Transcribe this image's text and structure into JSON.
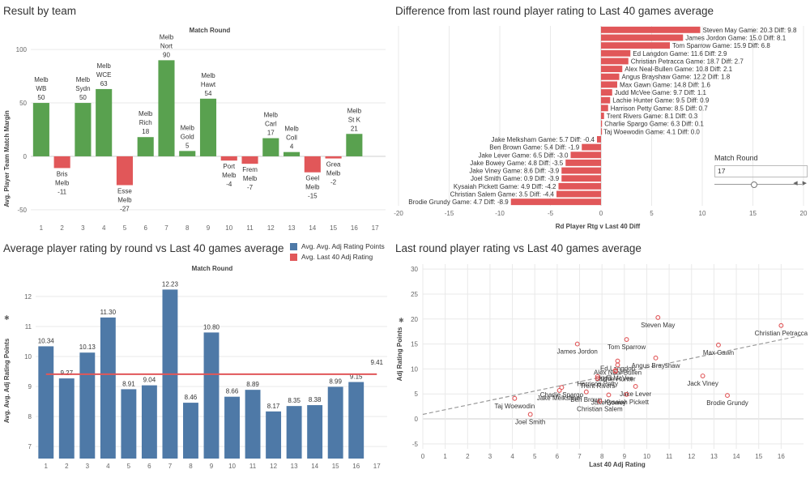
{
  "panels": {
    "p1": {
      "title": "Result by team",
      "header": "Match Round",
      "ylabel": "Avg. Player Team Match Margin",
      "yticks": [
        -50,
        0,
        50,
        100
      ],
      "rounds": [
        1,
        2,
        3,
        4,
        5,
        6,
        7,
        8,
        9,
        10,
        11,
        12,
        13,
        14,
        15,
        16,
        17
      ],
      "labels": [
        [
          "Melb",
          "WB",
          "50"
        ],
        [
          "Bris",
          "Melb",
          "-11"
        ],
        [
          "Melb",
          "Sydn",
          "50"
        ],
        [
          "Melb",
          "WCE",
          "63"
        ],
        [
          "Esse",
          "Melb",
          "-27"
        ],
        [
          "Melb",
          "Rich",
          "18"
        ],
        [
          "Melb",
          "Nort",
          "90"
        ],
        [
          "Melb",
          "Gold",
          "5"
        ],
        [
          "Melb",
          "Hawt",
          "54"
        ],
        [
          "Port",
          "Melb",
          "-4"
        ],
        [
          "Frem",
          "Melb",
          "-7"
        ],
        [
          "Melb",
          "Carl",
          "17"
        ],
        [
          "Melb",
          "Coll",
          "4"
        ],
        [
          "Geel",
          "Melb",
          "-15"
        ],
        [
          "Grea",
          "Melb",
          "-2"
        ],
        [
          "Melb",
          "St K",
          "21"
        ]
      ],
      "values": [
        50,
        -11,
        50,
        63,
        -27,
        18,
        90,
        5,
        54,
        -4,
        -7,
        17,
        4,
        -15,
        -2,
        21
      ],
      "colors": {
        "win": "#59a14f",
        "loss": "#e15759"
      }
    },
    "p2": {
      "title": "Difference from last round player rating to Last 40 games average",
      "xlabel": "Rd Player Rtg v Last 40 Diff",
      "xticks": [
        -20,
        -15,
        -10,
        -5,
        0,
        5,
        10,
        15,
        20
      ],
      "labels": [
        "Steven May Game: 20.3 Diff: 9.8",
        "James Jordon Game: 15.0 Diff: 8.1",
        "Tom Sparrow Game: 15.9 Diff: 6.8",
        "Ed Langdon Game: 11.6 Diff: 2.9",
        "Christian Petracca Game: 18.7 Diff: 2.7",
        "Alex Neal-Bullen Game: 10.8 Diff: 2.1",
        "Angus Brayshaw Game: 12.2 Diff: 1.8",
        "Max Gawn Game: 14.8 Diff: 1.6",
        "Judd McVee Game: 9.7 Diff: 1.1",
        "Lachie Hunter Game: 9.5 Diff: 0.9",
        "Harrison Petty Game: 8.5 Diff: 0.7",
        "Trent Rivers Game: 8.1 Diff: 0.3",
        "Charlie Spargo Game: 6.3 Diff: 0.1",
        "Taj Woewodin Game: 4.1 Diff: 0.0",
        "Jake Melksham Game: 5.7 Diff: -0.4",
        "Ben Brown Game: 5.4 Diff: -1.9",
        "Jake Lever Game: 6.5 Diff: -3.0",
        "Jake Bowey Game: 4.8 Diff: -3.5",
        "Jake Viney Game: 8.6 Diff: -3.9",
        "Joel Smith Game: 0.9 Diff: -3.9",
        "Kysaiah Pickett Game: 4.9 Diff: -4.2",
        "Christian Salem Game: 3.5 Diff: -4.4",
        "Brodie Grundy Game: 4.7 Diff: -8.9"
      ],
      "values": [
        9.8,
        8.1,
        6.8,
        2.9,
        2.7,
        2.1,
        1.8,
        1.6,
        1.1,
        0.9,
        0.7,
        0.3,
        0.1,
        0.0,
        -0.4,
        -1.9,
        -3.0,
        -3.5,
        -3.9,
        -3.9,
        -4.2,
        -4.4,
        -8.9
      ],
      "color": "#e15759"
    },
    "p3": {
      "title": "Average player rating by round vs Last 40 games average",
      "header": "Match Round",
      "ylabel": "Avg. Avg. Adj Rating Points",
      "yticks": [
        7,
        8,
        9,
        10,
        11,
        12
      ],
      "rounds": [
        1,
        2,
        3,
        4,
        5,
        6,
        7,
        8,
        9,
        10,
        11,
        12,
        13,
        14,
        15,
        16,
        17
      ],
      "values": [
        10.34,
        9.27,
        10.13,
        11.3,
        8.91,
        9.04,
        12.23,
        8.46,
        10.8,
        8.66,
        8.89,
        8.17,
        8.35,
        8.38,
        8.99,
        9.15
      ],
      "value_labels": [
        "10.34",
        "9.27",
        "10.13",
        "11.30",
        "8.91",
        "9.04",
        "12.23",
        "8.46",
        "10.80",
        "8.66",
        "8.89",
        "8.17",
        "8.35",
        "8.38",
        "8.99",
        "9.15"
      ],
      "line_value": 9.41,
      "line_label": "9.41",
      "colors": {
        "bar": "#4e79a7",
        "line": "#e15759"
      },
      "legend": [
        {
          "label": "Avg. Avg. Adj Rating Points",
          "color": "#4e79a7"
        },
        {
          "label": "Avg. Last 40 Adj Rating",
          "color": "#e15759"
        }
      ]
    },
    "p4": {
      "title": "Last round player rating vs Last 40 games average",
      "xlabel": "Last 40 Adj Rating",
      "ylabel": "Adj Rating Points",
      "xticks": [
        0,
        1,
        2,
        3,
        4,
        5,
        6,
        7,
        8,
        9,
        10,
        11,
        12,
        13,
        14,
        15,
        16
      ],
      "yticks": [
        -5,
        0,
        5,
        10,
        15,
        20,
        25,
        30
      ],
      "points": [
        {
          "name": "Steven May",
          "x": 10.5,
          "y": 20.3
        },
        {
          "name": "Christian Petracca",
          "x": 16.0,
          "y": 18.7
        },
        {
          "name": "James Jordon",
          "x": 6.9,
          "y": 15.0
        },
        {
          "name": "Tom Sparrow",
          "x": 9.1,
          "y": 15.9
        },
        {
          "name": "Max Gawn",
          "x": 13.2,
          "y": 14.8
        },
        {
          "name": "Angus Brayshaw",
          "x": 10.4,
          "y": 12.2
        },
        {
          "name": "Ed Langdon",
          "x": 8.7,
          "y": 11.6
        },
        {
          "name": "Alex Neal-Bullen",
          "x": 8.7,
          "y": 10.8
        },
        {
          "name": "Judd McVee",
          "x": 8.6,
          "y": 9.7
        },
        {
          "name": "Lachie Hunter",
          "x": 8.6,
          "y": 9.5
        },
        {
          "name": "Harrison Petty",
          "x": 7.8,
          "y": 8.5
        },
        {
          "name": "Trent Rivers",
          "x": 7.8,
          "y": 8.1
        },
        {
          "name": "Jack Viney",
          "x": 12.5,
          "y": 8.6
        },
        {
          "name": "Charlie Spargo",
          "x": 6.2,
          "y": 6.3
        },
        {
          "name": "Jake Melksham",
          "x": 6.1,
          "y": 5.7
        },
        {
          "name": "Ben Brown",
          "x": 7.3,
          "y": 5.4
        },
        {
          "name": "Jake Lever",
          "x": 9.5,
          "y": 6.5
        },
        {
          "name": "Jake Bowey",
          "x": 8.3,
          "y": 4.8
        },
        {
          "name": "Kysaiah Pickett",
          "x": 9.1,
          "y": 4.9
        },
        {
          "name": "Christian Salem",
          "x": 7.9,
          "y": 3.5
        },
        {
          "name": "Brodie Grundy",
          "x": 13.6,
          "y": 4.7
        },
        {
          "name": "Taj Woewodin",
          "x": 4.1,
          "y": 4.1
        },
        {
          "name": "Joel Smith",
          "x": 4.8,
          "y": 0.9
        }
      ],
      "trend": {
        "x0": 0,
        "y0": 0.9,
        "x1": 17,
        "y1": 16.8
      },
      "color": "#e15759"
    }
  },
  "filter": {
    "title": "Match Round",
    "value": "17",
    "slider_fraction": 0.45
  },
  "pin_icon": "pin-icon"
}
